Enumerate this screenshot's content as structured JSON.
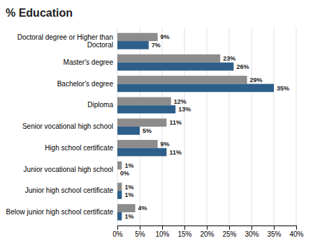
{
  "chart_data": {
    "type": "bar",
    "orientation": "horizontal",
    "title": "% Education",
    "categories": [
      "Below junior high school certificate",
      "Junior high school certificate",
      "Junior vocational high school",
      "High school certificate",
      "Senior vocational high school",
      "Diploma",
      "Bachelor's degree",
      "Master's degree",
      "Doctoral degree or Higher than\nDoctoral"
    ],
    "series": [
      {
        "color": "#8C8C8C",
        "values": [
          4,
          1,
          1,
          9,
          11,
          12,
          29,
          23,
          9
        ],
        "value_labels": [
          "4%",
          "1%",
          "1%",
          "9%",
          "11%",
          "12%",
          "29%",
          "23%",
          "9%"
        ]
      },
      {
        "color": "#2E5F8A",
        "values": [
          1,
          1,
          0,
          11,
          5,
          13,
          35,
          26,
          7
        ],
        "value_labels": [
          "1%",
          "1%",
          "0%",
          "11%",
          "5%",
          "13%",
          "35%",
          "26%",
          "7%"
        ]
      }
    ],
    "xlim": [
      0,
      40
    ],
    "xticks": [
      {
        "value": 0,
        "label": "0%"
      },
      {
        "value": 5,
        "label": "5%"
      },
      {
        "value": 10,
        "label": "10%"
      },
      {
        "value": 15,
        "label": "15%"
      },
      {
        "value": 20,
        "label": "20%"
      },
      {
        "value": 25,
        "label": "25%"
      },
      {
        "value": 30,
        "label": "30%"
      },
      {
        "value": 35,
        "label": "35%"
      },
      {
        "value": 40,
        "label": "40%"
      }
    ],
    "grid": true,
    "data_labels": true
  }
}
